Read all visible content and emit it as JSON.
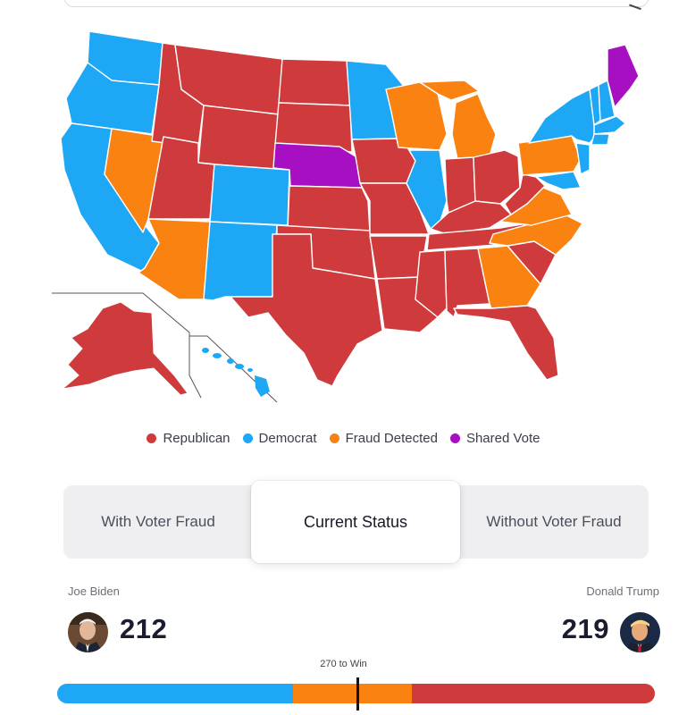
{
  "colors": {
    "republican": "#cf3a3d",
    "democrat": "#1ea7f4",
    "fraud": "#fa8211",
    "shared": "#a610c2"
  },
  "search": {
    "icon": "search-icon"
  },
  "legend": [
    {
      "label": "Republican",
      "color": "#cf3a3d"
    },
    {
      "label": "Democrat",
      "color": "#1ea7f4"
    },
    {
      "label": "Fraud Detected",
      "color": "#fa8211"
    },
    {
      "label": "Shared Vote",
      "color": "#a610c2"
    }
  ],
  "tabs": {
    "left": "With Voter Fraud",
    "center": "Current Status",
    "right": "Without Voter Fraud",
    "active": "center"
  },
  "candidates": {
    "left": {
      "name": "Joe Biden",
      "votes": "212"
    },
    "right": {
      "name": "Donald Trump",
      "votes": "219"
    }
  },
  "bar": {
    "win_label": "270 to Win",
    "total": 538,
    "segments": [
      {
        "party": "democrat",
        "votes": 212,
        "color": "#1ea7f4"
      },
      {
        "party": "fraud",
        "votes": 107,
        "color": "#fa8211"
      },
      {
        "party": "republican",
        "votes": 219,
        "color": "#cf3a3d"
      }
    ]
  }
}
